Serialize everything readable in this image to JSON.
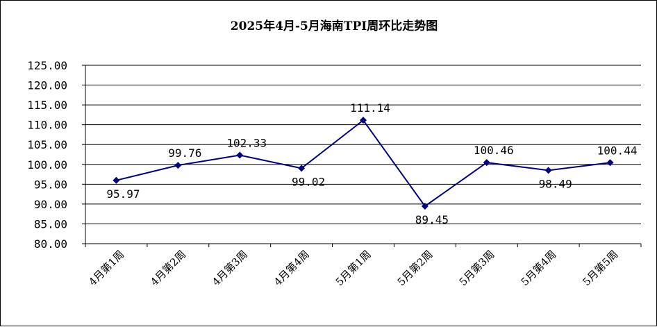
{
  "chart_data": {
    "type": "line",
    "title": "2025年4月-5月海南TPI周环比走势图",
    "xlabel": "",
    "ylabel": "",
    "categories": [
      "4月第1周",
      "4月第2周",
      "4月第3周",
      "4月第4周",
      "5月第1周",
      "5月第2周",
      "5月第3周",
      "5月第4周",
      "5月第5周"
    ],
    "series": [
      {
        "values": [
          95.97,
          99.76,
          102.33,
          99.02,
          111.14,
          89.45,
          100.46,
          98.49,
          100.44
        ],
        "value_labels": [
          "95.97",
          "99.76",
          "102.33",
          "99.02",
          "111.14",
          "89.45",
          "100.46",
          "98.49",
          "100.44"
        ],
        "color": "#000080"
      }
    ],
    "ylim": [
      80,
      125
    ],
    "ytick_step": 5,
    "ytick_labels": [
      "80.00",
      "85.00",
      "90.00",
      "95.00",
      "100.00",
      "105.00",
      "110.00",
      "115.00",
      "120.00",
      "125.00"
    ],
    "grid": true,
    "legend": "none"
  }
}
